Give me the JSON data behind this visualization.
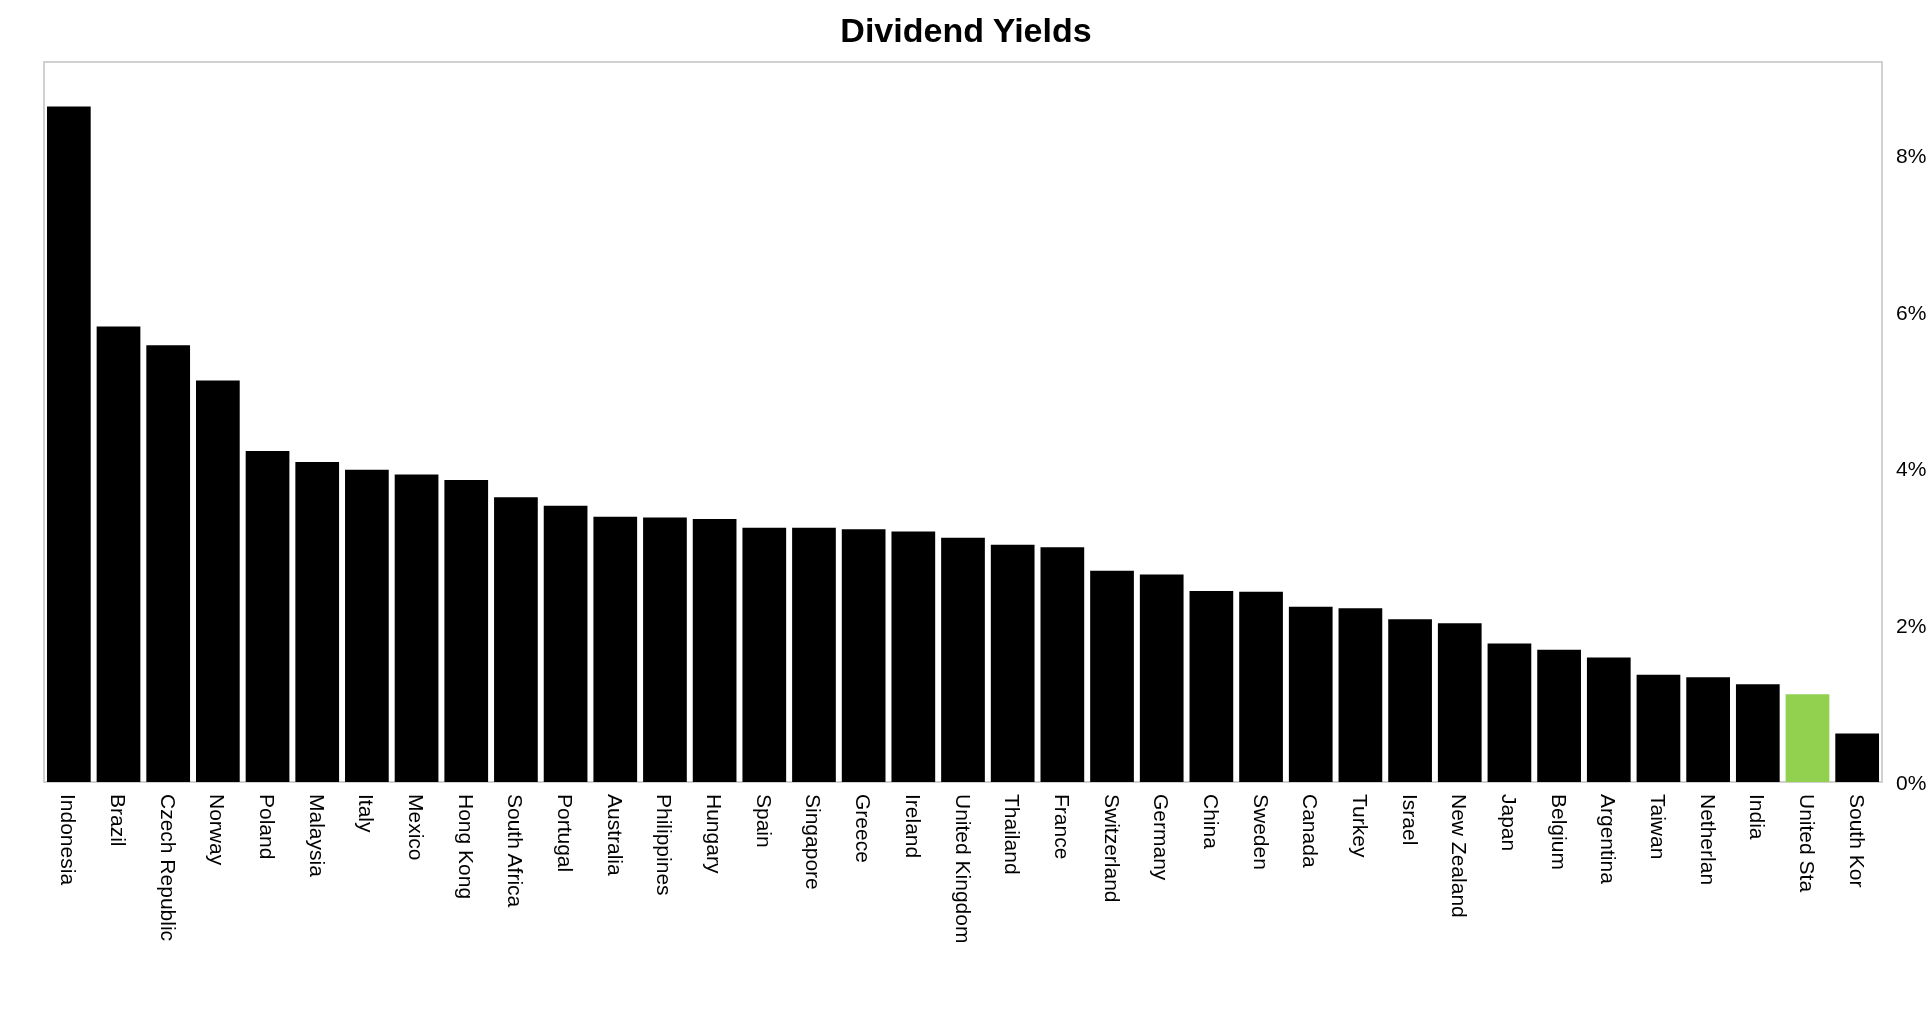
{
  "chart_data": {
    "type": "bar",
    "title": "Dividend Yields",
    "categories": [
      "Indonesia",
      "Brazil",
      "Czech Republic",
      "Norway",
      "Poland",
      "Malaysia",
      "Italy",
      "Mexico",
      "Hong Kong",
      "South Africa",
      "Portugal",
      "Australia",
      "Philippines",
      "Hungary",
      "Spain",
      "Singapore",
      "Greece",
      "Ireland",
      "United Kingdom",
      "Thailand",
      "France",
      "Switzerland",
      "Germany",
      "China",
      "Sweden",
      "Canada",
      "Turkey",
      "Israel",
      "New Zealand",
      "Japan",
      "Belgium",
      "Argentina",
      "Taiwan",
      "Netherlan",
      "India",
      "United Sta",
      "South Kor"
    ],
    "values": [
      8.63,
      5.82,
      5.58,
      5.13,
      4.23,
      4.09,
      3.99,
      3.93,
      3.86,
      3.64,
      3.53,
      3.39,
      3.38,
      3.36,
      3.25,
      3.25,
      3.23,
      3.2,
      3.12,
      3.03,
      3.0,
      2.7,
      2.65,
      2.44,
      2.43,
      2.24,
      2.22,
      2.08,
      2.03,
      1.77,
      1.69,
      1.59,
      1.37,
      1.34,
      1.25,
      1.12,
      0.62
    ],
    "colors": [
      "#000000",
      "#000000",
      "#000000",
      "#000000",
      "#000000",
      "#000000",
      "#000000",
      "#000000",
      "#000000",
      "#000000",
      "#000000",
      "#000000",
      "#000000",
      "#000000",
      "#000000",
      "#000000",
      "#000000",
      "#000000",
      "#000000",
      "#000000",
      "#000000",
      "#000000",
      "#000000",
      "#000000",
      "#000000",
      "#000000",
      "#000000",
      "#000000",
      "#000000",
      "#000000",
      "#000000",
      "#000000",
      "#000000",
      "#000000",
      "#000000",
      "#92d050",
      "#000000"
    ],
    "ylim": [
      0,
      9.2
    ],
    "yticks": [
      {
        "value": 0,
        "label": "0%"
      },
      {
        "value": 2,
        "label": "2%"
      },
      {
        "value": 4,
        "label": "4%"
      },
      {
        "value": 6,
        "label": "6%"
      },
      {
        "value": 8,
        "label": "8%"
      }
    ],
    "grid": false
  }
}
